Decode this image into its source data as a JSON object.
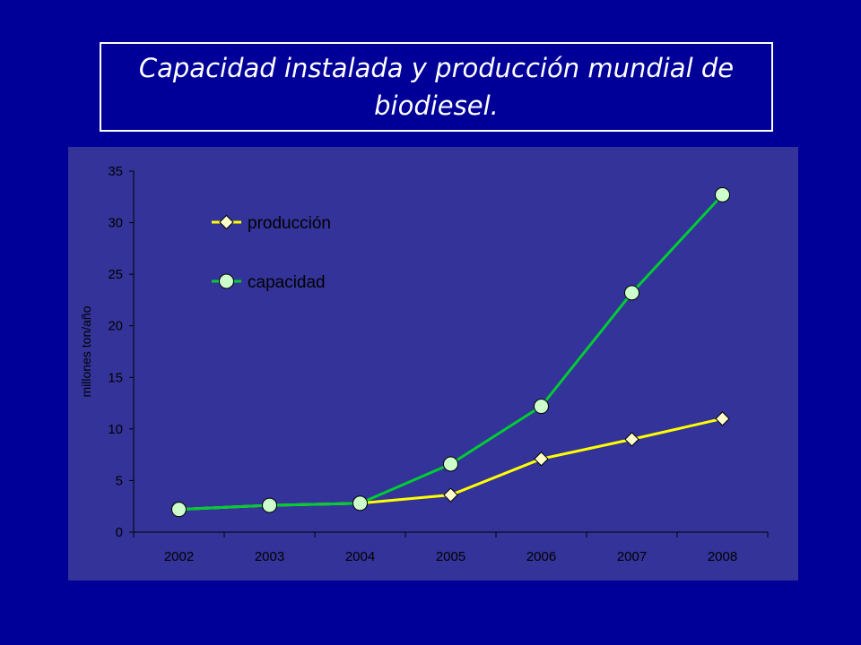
{
  "slide": {
    "title": "Capacidad instalada y producción mundial de biodiesel."
  },
  "colors": {
    "background": "#000099",
    "plot_background": "#333399",
    "produccion": "#ffff00",
    "capacidad": "#00cc33"
  },
  "chart_data": {
    "type": "line",
    "title": "",
    "xlabel": "",
    "ylabel": "millones ton/año",
    "categories": [
      "2002",
      "2003",
      "2004",
      "2005",
      "2006",
      "2007",
      "2008"
    ],
    "ylim": [
      0,
      35
    ],
    "yticks": [
      0,
      5,
      10,
      15,
      20,
      25,
      30,
      35
    ],
    "series": [
      {
        "name": "producción",
        "marker": "diamond",
        "color": "#ffff00",
        "values": [
          2.2,
          2.6,
          2.8,
          3.6,
          7.1,
          9.0,
          11.0
        ]
      },
      {
        "name": "capacidad",
        "marker": "circle",
        "color": "#00cc33",
        "values": [
          2.2,
          2.6,
          2.8,
          6.6,
          12.2,
          23.2,
          32.7
        ]
      }
    ],
    "legend": "top-left",
    "grid": false
  }
}
